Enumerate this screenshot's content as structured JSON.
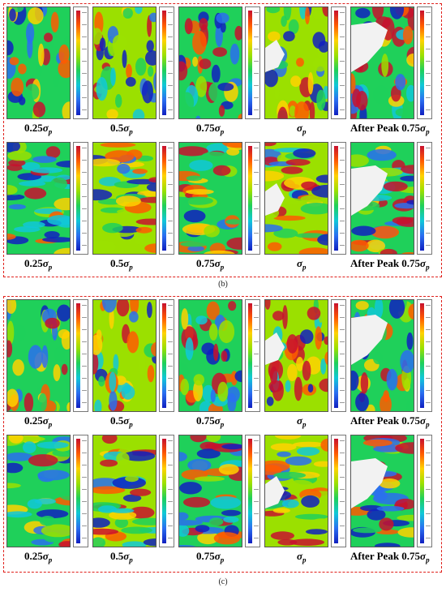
{
  "panels": [
    {
      "label": "(b)",
      "rows": [
        {
          "captions": [
            {
              "prefix": "0.25",
              "sym": "σ",
              "sub": "p"
            },
            {
              "prefix": "0.5",
              "sym": "σ",
              "sub": "p"
            },
            {
              "prefix": "0.75",
              "sym": "σ",
              "sub": "p"
            },
            {
              "prefix": "",
              "sym": "σ",
              "sub": "p"
            },
            {
              "prefix": "After Peak 0.75",
              "sym": "σ",
              "sub": "p"
            }
          ]
        },
        {
          "captions": [
            {
              "prefix": "0.25",
              "sym": "σ",
              "sub": "p"
            },
            {
              "prefix": "0.5",
              "sym": "σ",
              "sub": "p"
            },
            {
              "prefix": "0.75",
              "sym": "σ",
              "sub": "p"
            },
            {
              "prefix": "",
              "sym": "σ",
              "sub": "p"
            },
            {
              "prefix": "After Peak 0.75",
              "sym": "σ",
              "sub": "p"
            }
          ]
        }
      ]
    },
    {
      "label": "(c)",
      "rows": [
        {
          "captions": [
            {
              "prefix": "0.25",
              "sym": "σ",
              "sub": "p"
            },
            {
              "prefix": "0.5",
              "sym": "σ",
              "sub": "p"
            },
            {
              "prefix": "0.75",
              "sym": "σ",
              "sub": "p"
            },
            {
              "prefix": "",
              "sym": "σ",
              "sub": "p"
            },
            {
              "prefix": "After Peak 0.75",
              "sym": "σ",
              "sub": "p"
            }
          ]
        },
        {
          "captions": [
            {
              "prefix": "0.25",
              "sym": "σ",
              "sub": "p"
            },
            {
              "prefix": "0.5",
              "sym": "σ",
              "sub": "p"
            },
            {
              "prefix": "0.75",
              "sym": "σ",
              "sub": "p"
            },
            {
              "prefix": "",
              "sym": "σ",
              "sub": "p"
            },
            {
              "prefix": "After Peak 0.75",
              "sym": "σ",
              "sub": "p"
            }
          ]
        }
      ]
    }
  ],
  "colors": {
    "frame": "#e0201b",
    "scale": [
      "#1020c0",
      "#2a6ef0",
      "#10c8d8",
      "#1fd05a",
      "#9be000",
      "#ffd200",
      "#ff5a00",
      "#c8102e"
    ],
    "crack": "#f2f2f2"
  }
}
